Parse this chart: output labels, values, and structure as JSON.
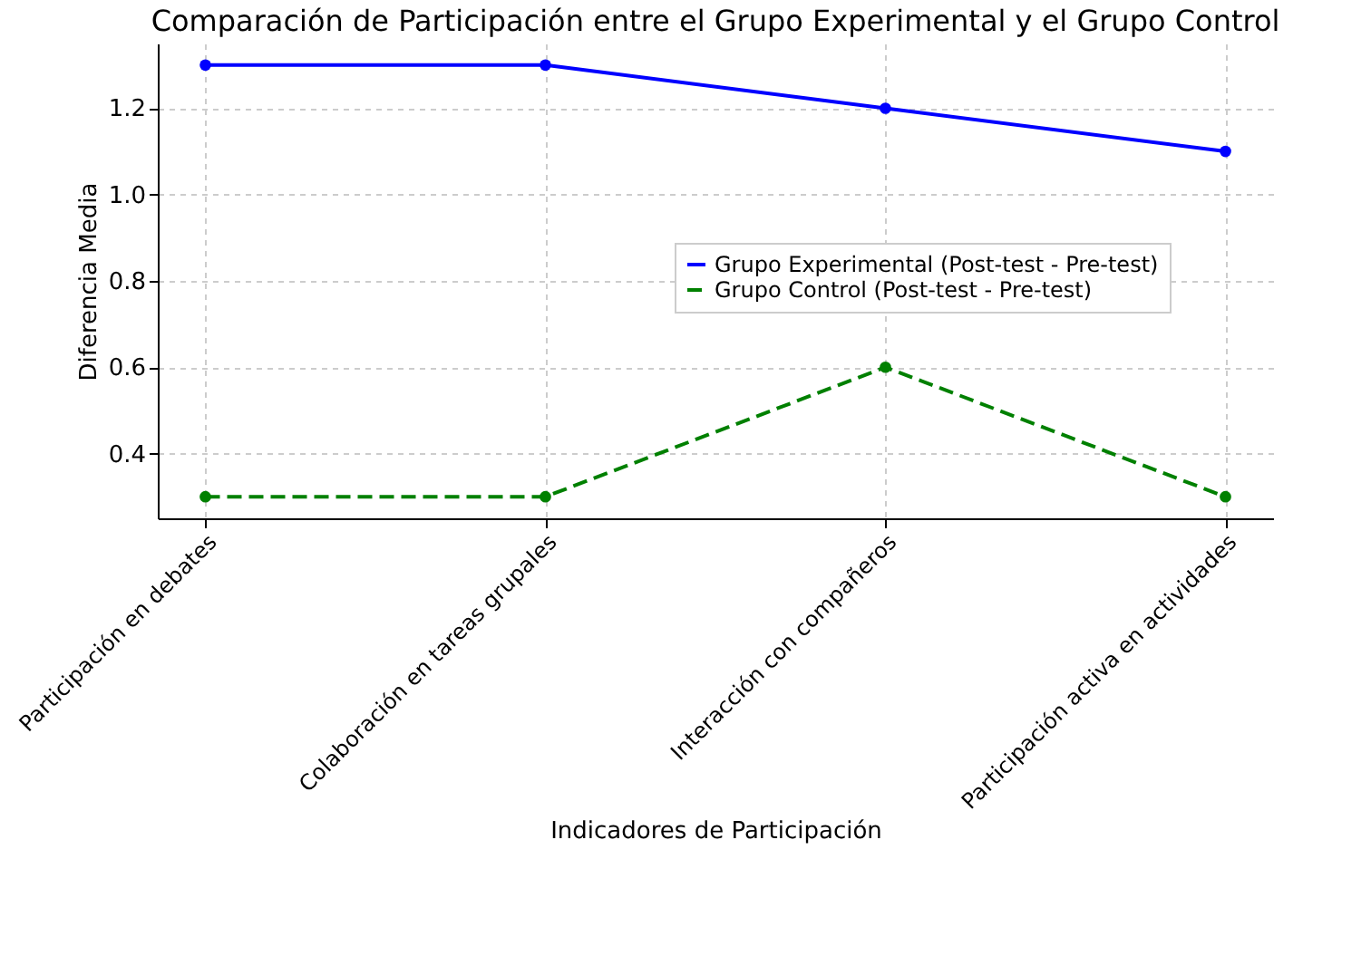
{
  "chart_data": {
    "type": "line",
    "title": "Comparación de Participación entre el Grupo Experimental y el Grupo Control",
    "xlabel": "Indicadores de Participación",
    "ylabel": "Diferencia Media",
    "categories": [
      "Participación en debates",
      "Colaboración en tareas grupales",
      "Interacción con compañeros",
      "Participación activa en actividades"
    ],
    "series": [
      {
        "name": "Grupo Experimental (Post-test - Pre-test)",
        "color": "#0000ff",
        "values": [
          1.3,
          1.3,
          1.2,
          1.1
        ],
        "line_style": "solid"
      },
      {
        "name": "Grupo Control (Post-test - Pre-test)",
        "color": "#008000",
        "values": [
          0.3,
          0.3,
          0.6,
          0.3
        ],
        "line_style": "dashed"
      }
    ],
    "ylim": [
      0.25,
      1.35
    ],
    "yticks": [
      {
        "value": 0.4,
        "label": "0.4"
      },
      {
        "value": 0.6,
        "label": "0.6"
      },
      {
        "value": 0.8,
        "label": "0.8"
      },
      {
        "value": 1.0,
        "label": "1.0"
      },
      {
        "value": 1.2,
        "label": "1.2"
      }
    ],
    "grid": true,
    "legend": "right",
    "marker": "circle"
  }
}
